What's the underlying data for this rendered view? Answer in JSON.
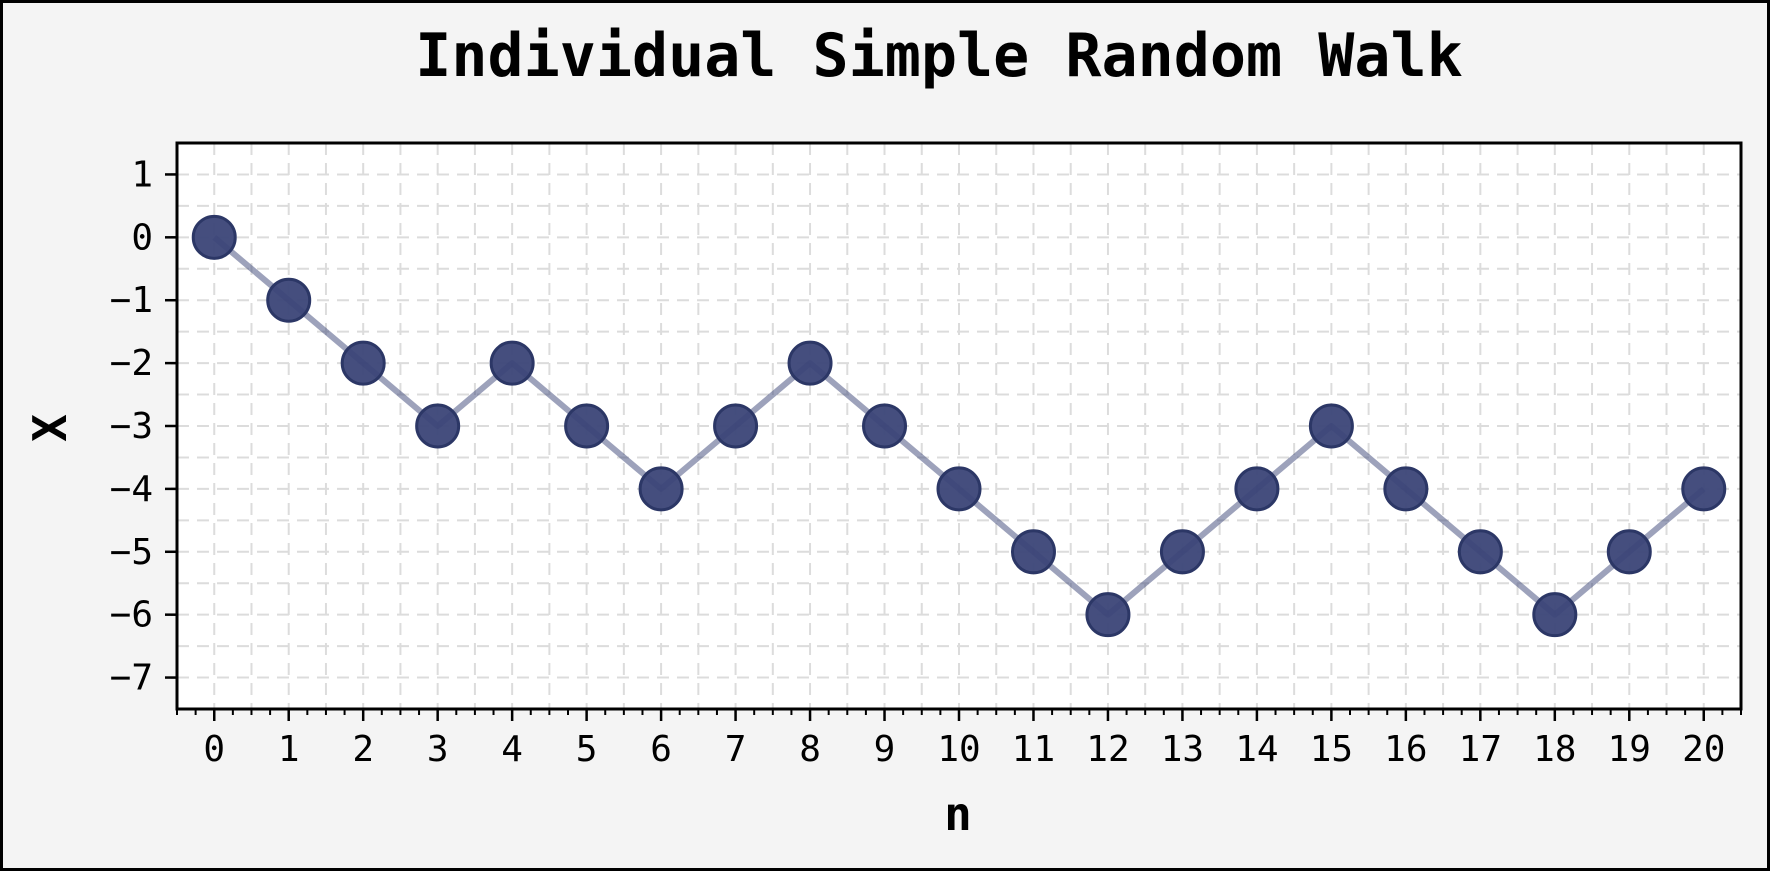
{
  "colors": {
    "background": "#f4f4f4",
    "plot_background": "#ffffff",
    "series": "#3b4577",
    "series_edge": "#2c3766"
  },
  "chart_data": {
    "type": "line",
    "title": "Individual Simple Random Walk",
    "xlabel": "n",
    "ylabel": "X",
    "x": [
      0,
      1,
      2,
      3,
      4,
      5,
      6,
      7,
      8,
      9,
      10,
      11,
      12,
      13,
      14,
      15,
      16,
      17,
      18,
      19,
      20
    ],
    "series": [
      {
        "values": [
          0,
          -1,
          -2,
          -3,
          -2,
          -3,
          -4,
          -3,
          -2,
          -3,
          -4,
          -5,
          -6,
          -5,
          -4,
          -3,
          -4,
          -5,
          -6,
          -5,
          -4
        ]
      }
    ],
    "xlim": [
      -0.5,
      20.5
    ],
    "ylim": [
      -7.5,
      1.5
    ],
    "xticks": [
      "0",
      "1",
      "2",
      "3",
      "4",
      "5",
      "6",
      "7",
      "8",
      "9",
      "10",
      "11",
      "12",
      "13",
      "14",
      "15",
      "16",
      "17",
      "18",
      "19",
      "20"
    ],
    "yticks": [
      "1",
      "0",
      "−1",
      "−2",
      "−3",
      "−4",
      "−5",
      "−6",
      "−7"
    ],
    "ytick_values": [
      1,
      0,
      -1,
      -2,
      -3,
      -4,
      -5,
      -6,
      -7
    ],
    "grid": true,
    "marker": "circle"
  }
}
